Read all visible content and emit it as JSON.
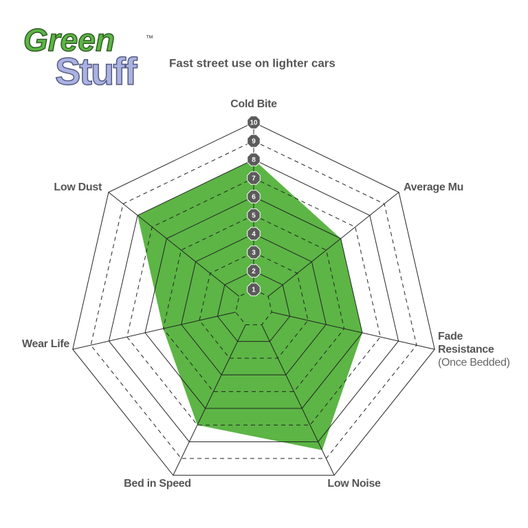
{
  "logo": {
    "line1": "Green",
    "line2": "Stuff",
    "mark": "™"
  },
  "chart_data": {
    "type": "radar",
    "title": "Fast street use on lighter cars",
    "categories": [
      "Cold Bite",
      "Average Mu",
      "Fade\nResistance\n(Once Bedded)",
      "Low Noise",
      "Bed in Speed",
      "Wear Life",
      "Low Dust"
    ],
    "values": [
      8,
      6,
      6,
      8.5,
      7,
      5,
      8
    ],
    "color": "#5cb545",
    "rlim": [
      0,
      10
    ],
    "rticks": [
      1,
      2,
      3,
      4,
      5,
      6,
      7,
      8,
      9,
      10
    ]
  }
}
